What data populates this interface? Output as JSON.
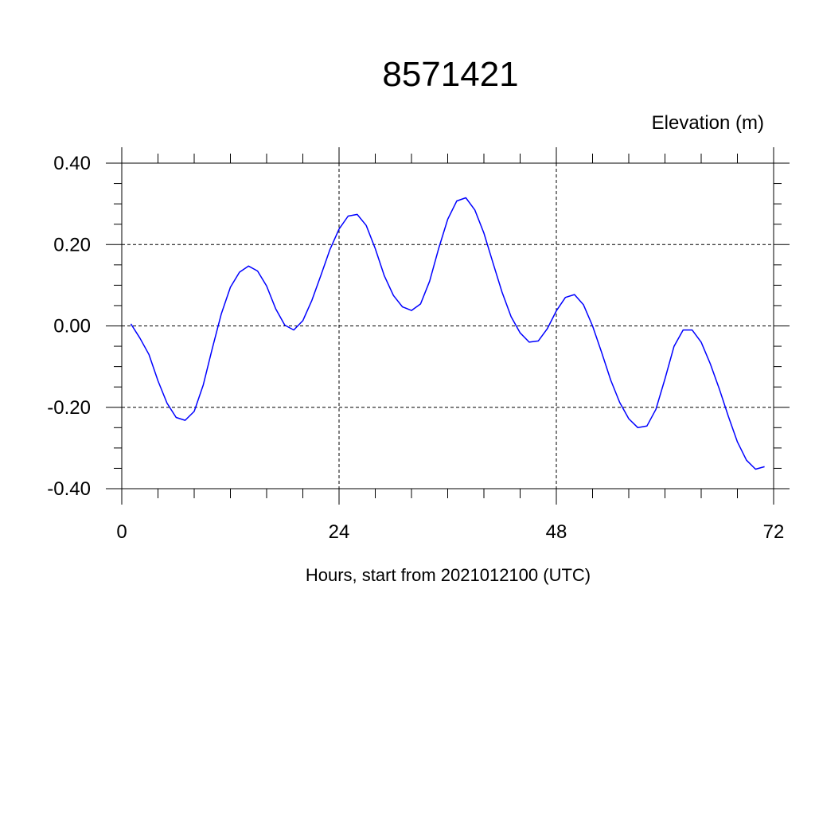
{
  "chart_data": {
    "type": "line",
    "title": "8571421",
    "ylabel_right": "Elevation (m)",
    "xlabel": "Hours, start from 2021012100 (UTC)",
    "xlim": [
      0,
      72
    ],
    "ylim": [
      -0.4,
      0.4
    ],
    "x_ticks": [
      0,
      24,
      48,
      72
    ],
    "x_tick_labels": [
      "0",
      "24",
      "48",
      "72"
    ],
    "y_ticks": [
      -0.4,
      -0.2,
      0.0,
      0.2,
      0.4
    ],
    "y_tick_labels": [
      "-0.40",
      "-0.20",
      "0.00",
      "0.20",
      "0.40"
    ],
    "grid": true,
    "line_color": "#0000ff",
    "series": [
      {
        "x": [
          1,
          2,
          3,
          4,
          5,
          6,
          7,
          8,
          9,
          10,
          11,
          12,
          13,
          14,
          15,
          16,
          17,
          18,
          19,
          20,
          21,
          22,
          23,
          24,
          25,
          26,
          27,
          28,
          29,
          30,
          31,
          32,
          33,
          34,
          35,
          36,
          37,
          38,
          39,
          40,
          41,
          42,
          43,
          44,
          45,
          46,
          47,
          48,
          49,
          50,
          51,
          52,
          53,
          54,
          55,
          56,
          57,
          58,
          59,
          60,
          61,
          62,
          63,
          64,
          65,
          66,
          67,
          68,
          69,
          70,
          71
        ],
        "y": [
          0.005,
          -0.03,
          -0.07,
          -0.135,
          -0.19,
          -0.225,
          -0.232,
          -0.21,
          -0.145,
          -0.055,
          0.03,
          0.095,
          0.132,
          0.147,
          0.135,
          0.098,
          0.042,
          0.002,
          -0.01,
          0.013,
          0.063,
          0.125,
          0.188,
          0.238,
          0.27,
          0.274,
          0.247,
          0.19,
          0.123,
          0.075,
          0.047,
          0.038,
          0.054,
          0.11,
          0.19,
          0.262,
          0.307,
          0.315,
          0.285,
          0.228,
          0.155,
          0.083,
          0.023,
          -0.017,
          -0.04,
          -0.037,
          -0.007,
          0.037,
          0.07,
          0.077,
          0.052,
          0.0,
          -0.065,
          -0.133,
          -0.188,
          -0.228,
          -0.25,
          -0.246,
          -0.205,
          -0.13,
          -0.05,
          -0.01,
          -0.01,
          -0.04,
          -0.093,
          -0.155,
          -0.222,
          -0.285,
          -0.33,
          -0.352,
          -0.346
        ]
      }
    ]
  }
}
